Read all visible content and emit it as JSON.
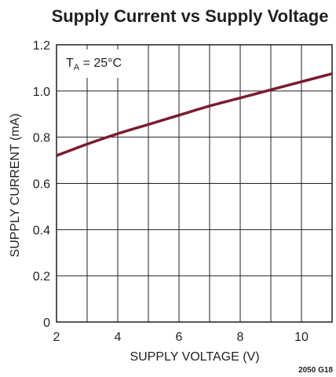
{
  "chart_data": {
    "type": "line",
    "title": "Supply Current vs Supply Voltage",
    "xlabel": "SUPPLY VOLTAGE (V)",
    "ylabel": "SUPPLY CURRENT (mA)",
    "xlim": [
      2,
      11
    ],
    "ylim": [
      0,
      1.2
    ],
    "x_ticks": [
      2,
      4,
      6,
      8,
      10
    ],
    "x_tick_labels": [
      "2",
      "4",
      "6",
      "8",
      "10"
    ],
    "y_ticks": [
      0,
      0.2,
      0.4,
      0.6,
      0.8,
      1.0,
      1.2
    ],
    "y_tick_labels": [
      "0",
      "0.2",
      "0.4",
      "0.6",
      "0.8",
      "1.0",
      "1.2"
    ],
    "x_gridlines": [
      2,
      3,
      4,
      5,
      6,
      7,
      8,
      9,
      10,
      11
    ],
    "y_gridlines": [
      0,
      0.2,
      0.4,
      0.6,
      0.8,
      1.0,
      1.2
    ],
    "grid": true,
    "annotation": {
      "main": "T",
      "subscript": "A",
      "rest": " = 25°C"
    },
    "figure_code": "2050 G18",
    "series": [
      {
        "color": "#7b1c2e",
        "x": [
          2,
          3,
          4,
          5,
          6,
          7,
          8,
          9,
          10,
          11
        ],
        "y": [
          0.72,
          0.77,
          0.815,
          0.855,
          0.895,
          0.935,
          0.97,
          1.005,
          1.04,
          1.075
        ]
      }
    ]
  }
}
